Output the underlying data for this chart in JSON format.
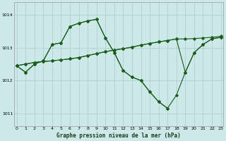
{
  "title": "Graphe pression niveau de la mer (hPa)",
  "background_color": "#cce8e8",
  "grid_color": "#aacccc",
  "line_color": "#1a5c1a",
  "ylim": [
    1010.6,
    1014.4
  ],
  "yticks": [
    1011,
    1012,
    1013,
    1014
  ],
  "xlim": [
    -0.3,
    23.3
  ],
  "xticks": [
    0,
    1,
    2,
    3,
    4,
    5,
    6,
    7,
    8,
    9,
    10,
    11,
    12,
    13,
    14,
    15,
    16,
    17,
    18,
    19,
    20,
    21,
    22,
    23
  ],
  "series_steep": [
    1012.45,
    1012.25,
    1012.5,
    1012.6,
    1013.1,
    1013.15,
    1013.65,
    1013.75,
    1013.82,
    1013.87,
    1013.3,
    1012.85,
    1012.3,
    1012.1,
    1012.0,
    1011.65,
    1011.35,
    1011.15,
    1011.55,
    1012.25,
    1012.85,
    1013.1,
    1013.27,
    1013.32
  ],
  "series_flat": [
    1012.45,
    1012.5,
    1012.55,
    1012.58,
    1012.6,
    1012.63,
    1012.66,
    1012.7,
    1012.76,
    1012.82,
    1012.88,
    1012.93,
    1012.97,
    1013.02,
    1013.08,
    1013.13,
    1013.18,
    1013.22,
    1013.27,
    1013.27,
    1013.28,
    1013.3,
    1013.32,
    1013.35
  ],
  "series_mid1": [
    1012.45,
    1012.25,
    1012.5,
    1012.6,
    1013.1,
    1013.15,
    1013.65,
    1013.75,
    1013.82,
    1013.87,
    1013.3,
    1012.85,
    1012.3,
    1012.1,
    1012.0,
    1011.65,
    1011.35,
    1011.15,
    null,
    null,
    null,
    null,
    null,
    null
  ],
  "series_mid2": [
    1012.45,
    1012.5,
    1012.55,
    1012.58,
    1012.6,
    1012.63,
    1012.66,
    1012.7,
    1012.76,
    1012.82,
    1012.88,
    1012.93,
    1012.97,
    1013.02,
    1013.08,
    1013.13,
    1013.18,
    1013.22,
    1013.27,
    1012.25,
    1012.85,
    1013.1,
    1013.27,
    1013.32
  ]
}
